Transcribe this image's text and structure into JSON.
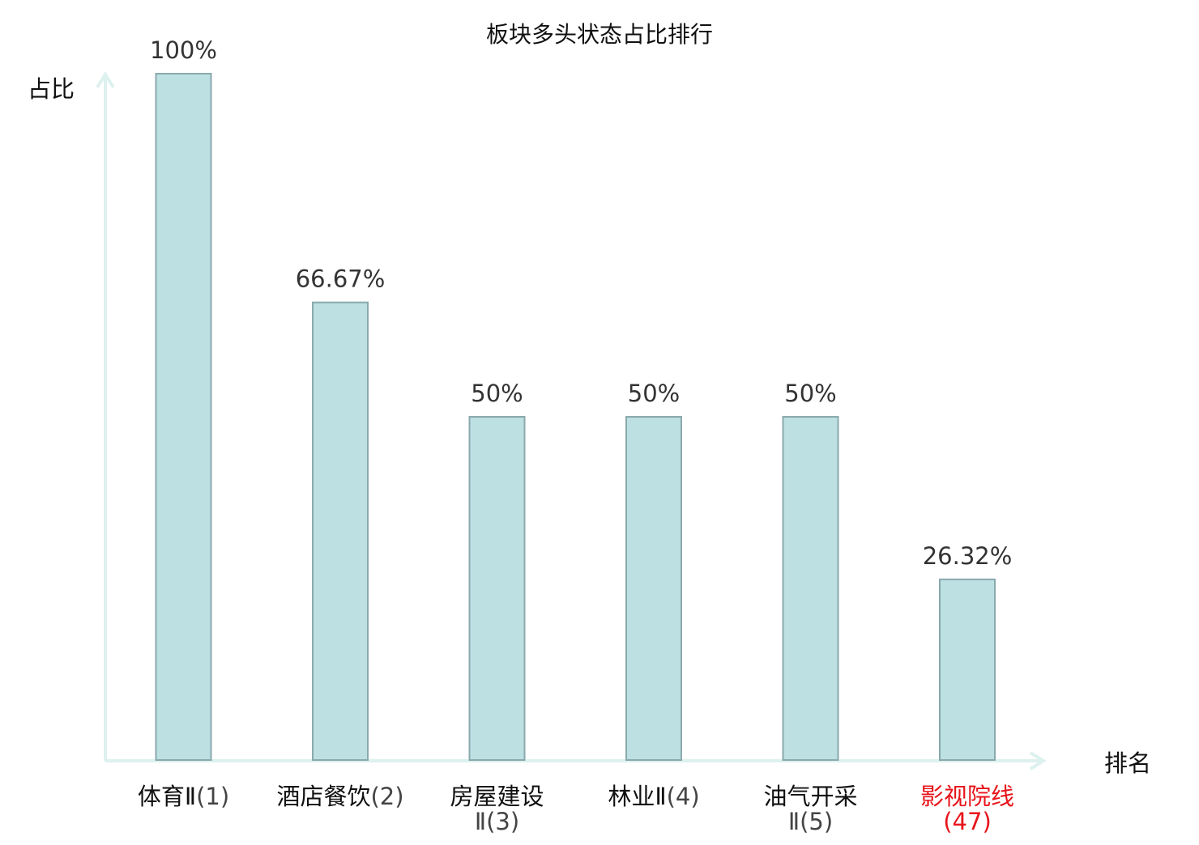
{
  "chart_data": {
    "type": "bar",
    "title": "板块多头状态占比排行",
    "ylabel": "占比",
    "xlabel": "排名",
    "ylim": [
      0,
      100
    ],
    "grid": false,
    "categories": [
      {
        "name": "体育Ⅱ",
        "rank": "(1)",
        "highlight": false
      },
      {
        "name": "酒店餐饮",
        "rank": "(2)",
        "highlight": false
      },
      {
        "name": "房屋建设Ⅱ",
        "rank": "(3)",
        "highlight": false
      },
      {
        "name": "林业Ⅱ",
        "rank": "(4)",
        "highlight": false
      },
      {
        "name": "油气开采Ⅱ",
        "rank": "(5)",
        "highlight": false
      },
      {
        "name": "影视院线",
        "rank": "(47)",
        "highlight": true
      }
    ],
    "values": [
      100,
      66.67,
      50,
      50,
      50,
      26.32
    ],
    "value_labels": [
      "100%",
      "66.67%",
      "50%",
      "50%",
      "50%",
      "26.32%"
    ],
    "colors": {
      "bar_fill": "#bde0e2",
      "bar_stroke": "#8aa9ad",
      "axis": "#ddf1ee",
      "text": "#111111",
      "value_text": "#333333",
      "rank_text": "#444444",
      "highlight_text": "#e8141b"
    }
  }
}
